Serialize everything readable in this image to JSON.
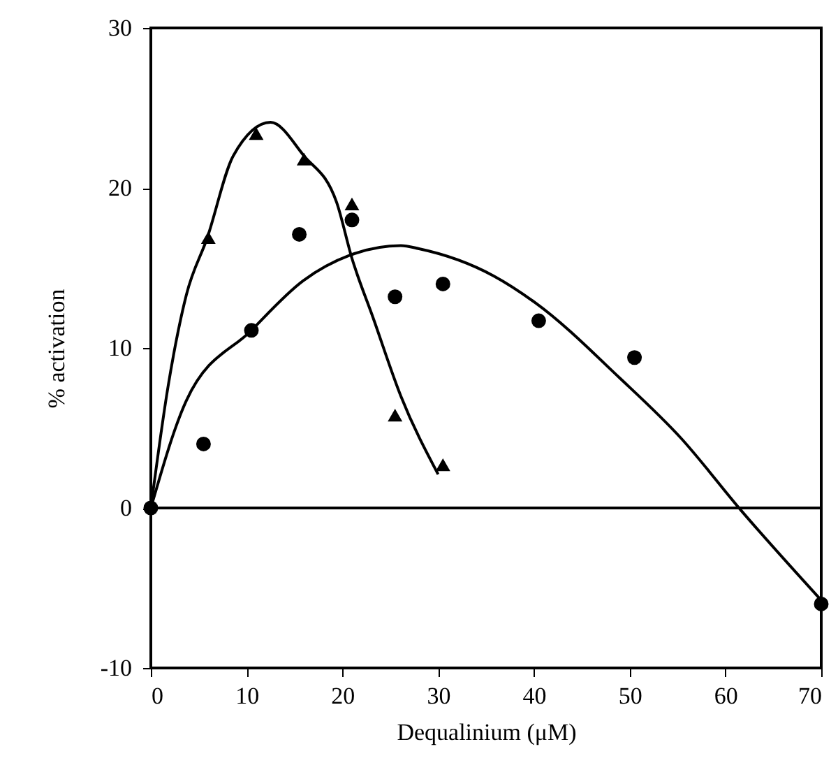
{
  "chart_data": {
    "type": "scatter",
    "xlabel": "Dequalinium (μM)",
    "ylabel": "% activation",
    "xlim": [
      0,
      70
    ],
    "ylim": [
      -10,
      30
    ],
    "xticks": [
      0,
      10,
      20,
      30,
      40,
      50,
      60,
      70
    ],
    "yticks": [
      -10,
      0,
      10,
      20,
      30
    ],
    "grid": false,
    "series": [
      {
        "marker": "triangle",
        "color": "#000000",
        "x": [
          6,
          11,
          16,
          21,
          25.5,
          30.5
        ],
        "values": [
          16.9,
          23.4,
          21.8,
          19.0,
          5.8,
          2.7
        ]
      },
      {
        "marker": "circle",
        "color": "#000000",
        "x": [
          0,
          5.5,
          10.5,
          15.5,
          21,
          25.5,
          30.5,
          40.5,
          50.5,
          70
        ],
        "values": [
          0,
          4.0,
          11.1,
          17.1,
          18.0,
          13.2,
          14.0,
          11.7,
          9.4,
          -6.0
        ]
      },
      {
        "type": "line",
        "marker": "none",
        "color": "#000000",
        "x": [
          0,
          1.8,
          3.7,
          5.9,
          8.6,
          12.5,
          16,
          19.4,
          21,
          23.2,
          26.1,
          30
        ],
        "values": [
          0,
          7.6,
          13.3,
          16.9,
          22,
          24.1,
          22,
          19.1,
          15.6,
          11.9,
          7.0,
          2.1
        ]
      },
      {
        "type": "line",
        "marker": "none",
        "color": "#000000",
        "x": [
          0,
          3.7,
          10.5,
          15.9,
          20.8,
          26.1,
          28,
          35.8,
          40.2,
          49,
          55.3,
          61.7,
          69.9
        ],
        "values": [
          0,
          6.7,
          11.1,
          14.2,
          15.8,
          16.4,
          16.2,
          14.5,
          12.8,
          8.1,
          4.4,
          -0.2,
          -5.7
        ]
      }
    ],
    "ref_lines": [
      {
        "axis": "y",
        "value": 0,
        "color": "#000000"
      }
    ]
  }
}
